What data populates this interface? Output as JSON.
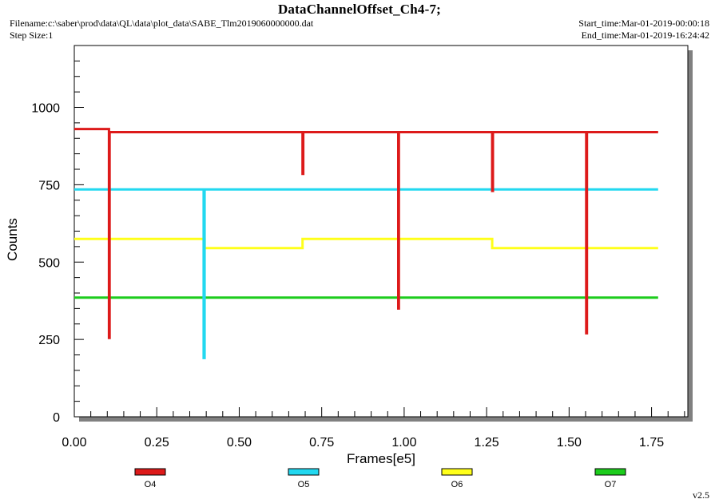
{
  "header": {
    "title": "DataChannelOffset_Ch4-7;",
    "filename": "Filename:c:\\saber\\prod\\data\\QL\\data\\plot_data\\SABE_Tlm2019060000000.dat",
    "step_size": "Step Size:1",
    "start_time": "Start_time:Mar-01-2019-00:00:18",
    "end_time": "End_time:Mar-01-2019-16:24:42"
  },
  "version": "v2.5",
  "colors": {
    "O4": "#dd1a1a",
    "O5": "#22d8f0",
    "O6": "#ffff1a",
    "O7": "#1ccc1c",
    "frame": "#000000",
    "shadow": "#808080"
  },
  "chart_data": {
    "type": "line",
    "title": "DataChannelOffset_Ch4-7;",
    "xlabel": "Frames[e5]",
    "ylabel": "Counts",
    "xlim": [
      0,
      1.86
    ],
    "ylim": [
      0,
      1200
    ],
    "x_ticks": [
      0.0,
      0.25,
      0.5,
      0.75,
      1.0,
      1.25,
      1.5,
      1.75
    ],
    "x_tick_labels": [
      "0.00",
      "0.25",
      "0.50",
      "0.75",
      "1.00",
      "1.25",
      "1.50",
      "1.75"
    ],
    "y_ticks": [
      0,
      250,
      500,
      750,
      1000
    ],
    "y_tick_labels": [
      "0",
      "250",
      "500",
      "750",
      "1000"
    ],
    "grid": false,
    "legend_position": "bottom",
    "series": [
      {
        "name": "O4",
        "x": [
          0.0,
          0.105,
          0.105,
          0.107,
          0.107,
          0.692,
          0.692,
          0.694,
          0.694,
          0.982,
          0.982,
          0.984,
          0.984,
          1.267,
          1.267,
          1.269,
          1.269,
          1.552,
          1.552,
          1.554,
          1.554,
          1.77
        ],
        "y": [
          930,
          930,
          255,
          255,
          920,
          920,
          785,
          785,
          920,
          920,
          350,
          350,
          920,
          920,
          730,
          730,
          920,
          920,
          270,
          270,
          920,
          920
        ]
      },
      {
        "name": "O5",
        "x": [
          0.0,
          0.392,
          0.392,
          0.395,
          0.395,
          1.77
        ],
        "y": [
          735,
          735,
          190,
          190,
          735,
          735
        ]
      },
      {
        "name": "O6",
        "x": [
          0.0,
          0.395,
          0.395,
          0.692,
          0.692,
          1.267,
          1.267,
          1.77
        ],
        "y": [
          575,
          575,
          545,
          545,
          575,
          575,
          545,
          545
        ]
      },
      {
        "name": "O7",
        "x": [
          0.0,
          1.77
        ],
        "y": [
          385,
          385
        ]
      }
    ]
  }
}
